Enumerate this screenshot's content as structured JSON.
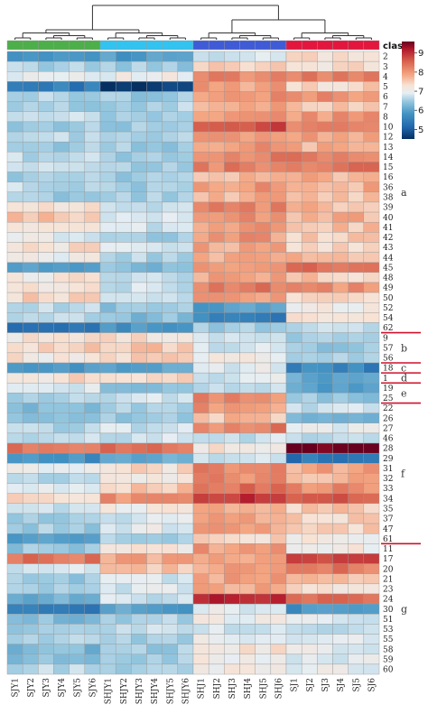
{
  "chart_data": {
    "type": "heatmap",
    "columns": [
      "SJY1",
      "SJY2",
      "SJY3",
      "SJY4",
      "SJY5",
      "SJY6",
      "SHJY1",
      "SHJY2",
      "SHJY3",
      "SHJY4",
      "SHJY5",
      "SHJY6",
      "SHJ1",
      "SHJ2",
      "SHJ3",
      "SHJ4",
      "SHJ5",
      "SHJ6",
      "SJ1",
      "SJ2",
      "SJ3",
      "SJ4",
      "SJ5",
      "SJ6"
    ],
    "column_groups": [
      {
        "start": 0,
        "end": 5,
        "color": "#4daf4a"
      },
      {
        "start": 6,
        "end": 11,
        "color": "#33c3f0"
      },
      {
        "start": 12,
        "end": 17,
        "color": "#3f5bd6"
      },
      {
        "start": 18,
        "end": 23,
        "color": "#e3173e"
      }
    ],
    "class_label": "class",
    "rows": [
      "2",
      "3",
      "4",
      "5",
      "6",
      "7",
      "8",
      "10",
      "12",
      "13",
      "14",
      "15",
      "16",
      "36",
      "38",
      "39",
      "40",
      "41",
      "42",
      "43",
      "44",
      "45",
      "48",
      "49",
      "50",
      "52",
      "54",
      "62",
      "9",
      "57",
      "56",
      "18",
      "1",
      "19",
      "25",
      "22",
      "26",
      "27",
      "46",
      "28",
      "29",
      "31",
      "32",
      "33",
      "34",
      "35",
      "37",
      "47",
      "61",
      "11",
      "17",
      "20",
      "21",
      "23",
      "24",
      "30",
      "51",
      "53",
      "55",
      "58",
      "59",
      "60"
    ],
    "row_groups": [
      {
        "label": "a",
        "start": 0,
        "end": 27
      },
      {
        "label": "b",
        "start": 28,
        "end": 30
      },
      {
        "label": "c",
        "start": 31,
        "end": 31
      },
      {
        "label": "d",
        "start": 32,
        "end": 32
      },
      {
        "label": "e",
        "start": 33,
        "end": 34
      },
      {
        "label": "f",
        "start": 35,
        "end": 48
      },
      {
        "label": "g",
        "start": 49,
        "end": 61
      }
    ],
    "group_profiles": [
      [
        5.8,
        5.7,
        6.7,
        7.3
      ],
      [
        6.5,
        6.4,
        7.5,
        7.3
      ],
      [
        7.0,
        7.0,
        8.0,
        8.1
      ],
      [
        5.3,
        4.6,
        7.8,
        7.4
      ],
      [
        6.5,
        6.4,
        7.9,
        8.0
      ],
      [
        6.4,
        6.5,
        7.7,
        7.6
      ],
      [
        6.6,
        6.4,
        7.9,
        7.9
      ],
      [
        6.4,
        6.4,
        8.6,
        8.2
      ],
      [
        6.6,
        6.4,
        8.0,
        7.8
      ],
      [
        6.4,
        6.4,
        7.9,
        7.7
      ],
      [
        6.6,
        6.4,
        8.1,
        8.2
      ],
      [
        6.6,
        6.4,
        8.1,
        8.2
      ],
      [
        6.4,
        6.4,
        7.7,
        7.7
      ],
      [
        6.6,
        6.4,
        7.9,
        7.7
      ],
      [
        6.4,
        6.4,
        7.7,
        7.6
      ],
      [
        7.3,
        6.6,
        8.0,
        7.6
      ],
      [
        7.5,
        6.8,
        8.0,
        7.7
      ],
      [
        7.3,
        6.7,
        7.9,
        7.6
      ],
      [
        6.9,
        6.4,
        7.9,
        7.5
      ],
      [
        7.3,
        6.7,
        7.8,
        7.4
      ],
      [
        7.0,
        6.5,
        7.8,
        7.6
      ],
      [
        5.7,
        6.2,
        7.8,
        8.2
      ],
      [
        7.2,
        6.7,
        7.8,
        7.5
      ],
      [
        7.3,
        6.7,
        8.2,
        7.9
      ],
      [
        7.4,
        6.7,
        7.9,
        7.4
      ],
      [
        6.6,
        6.3,
        5.8,
        7.1
      ],
      [
        6.5,
        6.2,
        5.4,
        7.2
      ],
      [
        5.3,
        5.6,
        6.4,
        6.6
      ],
      [
        7.2,
        7.3,
        6.7,
        6.4
      ],
      [
        7.4,
        7.5,
        6.8,
        6.3
      ],
      [
        7.2,
        7.5,
        7.1,
        6.4
      ],
      [
        5.6,
        5.8,
        6.9,
        5.4
      ],
      [
        7.3,
        7.3,
        6.8,
        5.9
      ],
      [
        6.9,
        6.2,
        6.6,
        5.8
      ],
      [
        6.5,
        6.7,
        8.0,
        6.3
      ],
      [
        6.2,
        6.5,
        7.9,
        6.7
      ],
      [
        6.1,
        6.3,
        7.6,
        6.2
      ],
      [
        6.5,
        6.7,
        8.1,
        6.9
      ],
      [
        6.6,
        6.7,
        6.7,
        6.6
      ],
      [
        8.2,
        8.2,
        7.2,
        9.6
      ],
      [
        5.6,
        6.0,
        6.8,
        5.2
      ],
      [
        6.9,
        7.3,
        8.1,
        7.8
      ],
      [
        6.6,
        7.1,
        8.0,
        7.7
      ],
      [
        7.0,
        7.5,
        8.2,
        8.0
      ],
      [
        7.4,
        7.9,
        8.8,
        8.4
      ],
      [
        6.6,
        7.1,
        7.8,
        7.5
      ],
      [
        6.4,
        6.8,
        7.8,
        7.4
      ],
      [
        6.4,
        6.9,
        7.8,
        7.5
      ],
      [
        5.8,
        6.4,
        7.4,
        7.2
      ],
      [
        6.3,
        7.2,
        7.9,
        7.1
      ],
      [
        8.2,
        7.8,
        7.9,
        8.7
      ],
      [
        6.8,
        7.5,
        7.8,
        8.2
      ],
      [
        6.4,
        6.8,
        7.8,
        7.5
      ],
      [
        6.5,
        6.8,
        7.8,
        7.3
      ],
      [
        6.0,
        6.7,
        8.9,
        8.4
      ],
      [
        5.2,
        5.8,
        6.9,
        5.6
      ],
      [
        6.2,
        6.5,
        7.0,
        6.8
      ],
      [
        6.4,
        6.6,
        6.8,
        6.6
      ],
      [
        6.5,
        6.5,
        7.0,
        6.8
      ],
      [
        6.1,
        6.4,
        7.2,
        6.9
      ],
      [
        6.2,
        6.4,
        7.1,
        6.9
      ],
      [
        6.6,
        6.4,
        7.1,
        6.9
      ]
    ],
    "value_range": [
      4.5,
      9.6
    ],
    "legend": {
      "ticks": [
        9,
        8,
        7,
        6,
        5
      ],
      "placement": "top-right"
    },
    "dendrogram": "columns"
  }
}
